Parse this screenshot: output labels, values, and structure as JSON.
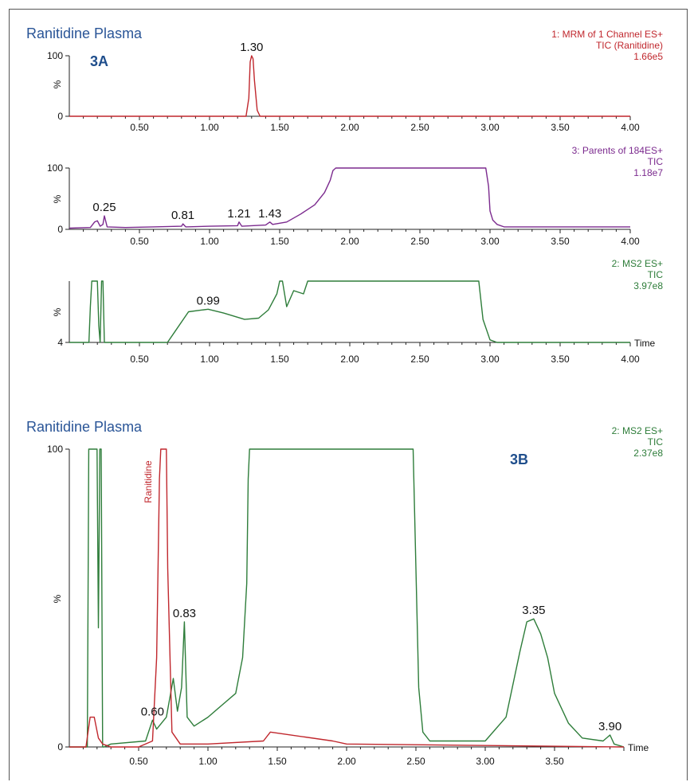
{
  "figure": {
    "colors": {
      "red": "#c0272d",
      "purple": "#7b2a8e",
      "green": "#2e7d3a",
      "title_blue": "#2a5597",
      "badge_blue": "#1f4e8c"
    }
  },
  "chart_data": [
    {
      "id": "p1",
      "type": "line",
      "title": "Ranitidine Plasma",
      "badge": "3A",
      "info": [
        "1: MRM of 1 Channel ES+",
        "TIC (Ranitidine)",
        "1.66e5"
      ],
      "color": "#c0272d",
      "ylabel": "%",
      "y_ticks": [
        "100",
        "0"
      ],
      "ylim": [
        0,
        100
      ],
      "xlim": [
        0.0,
        4.0
      ],
      "x_ticks": [
        "0.50",
        "1.00",
        "1.50",
        "2.00",
        "2.50",
        "3.00",
        "3.50",
        "4.00"
      ],
      "xlabel": "",
      "peaks": [
        {
          "x": 1.3,
          "label": "1.30"
        }
      ],
      "x": [
        0.0,
        1.26,
        1.28,
        1.29,
        1.3,
        1.31,
        1.32,
        1.34,
        1.36,
        4.0
      ],
      "y": [
        0,
        0,
        30,
        90,
        100,
        95,
        60,
        10,
        0,
        0
      ]
    },
    {
      "id": "p2",
      "type": "line",
      "title": "",
      "badge": "",
      "info": [
        "3: Parents of 184ES+",
        "TIC",
        "1.18e7"
      ],
      "color": "#7b2a8e",
      "ylabel": "%",
      "y_ticks": [
        "100",
        "0"
      ],
      "ylim": [
        0,
        100
      ],
      "xlim": [
        0.0,
        4.0
      ],
      "x_ticks": [
        "0.50",
        "1.00",
        "1.50",
        "2.00",
        "2.50",
        "3.00",
        "3.50",
        "4.00"
      ],
      "xlabel": "",
      "peaks": [
        {
          "x": 0.25,
          "label": "0.25"
        },
        {
          "x": 0.81,
          "label": "0.81"
        },
        {
          "x": 1.21,
          "label": "1.21"
        },
        {
          "x": 1.43,
          "label": "1.43"
        }
      ],
      "x": [
        0.0,
        0.15,
        0.18,
        0.2,
        0.22,
        0.24,
        0.25,
        0.27,
        0.4,
        0.6,
        0.8,
        0.81,
        0.83,
        1.0,
        1.2,
        1.21,
        1.23,
        1.4,
        1.43,
        1.45,
        1.55,
        1.65,
        1.75,
        1.82,
        1.86,
        1.88,
        1.9,
        2.5,
        2.97,
        2.99,
        3.0,
        3.02,
        3.05,
        3.1,
        4.0
      ],
      "y": [
        2,
        3,
        12,
        14,
        5,
        8,
        22,
        4,
        3,
        4,
        5,
        9,
        4,
        5,
        6,
        12,
        5,
        7,
        12,
        8,
        12,
        25,
        40,
        60,
        80,
        96,
        100,
        100,
        100,
        70,
        30,
        15,
        8,
        4,
        4
      ]
    },
    {
      "id": "p3",
      "type": "line",
      "title": "",
      "badge": "",
      "info": [
        "2: MS2 ES+",
        "TIC",
        "3.97e8"
      ],
      "color": "#2e7d3a",
      "ylabel": "%",
      "y_ticks": [
        "4"
      ],
      "ylim": [
        4,
        100
      ],
      "xlim": [
        0.0,
        4.0
      ],
      "x_ticks": [
        "0.50",
        "1.00",
        "1.50",
        "2.00",
        "2.50",
        "3.00",
        "3.50",
        "4.00"
      ],
      "xlabel": "Time",
      "peaks": [
        {
          "x": 0.99,
          "label": "0.99"
        }
      ],
      "x": [
        0.0,
        0.14,
        0.15,
        0.16,
        0.2,
        0.21,
        0.22,
        0.23,
        0.24,
        0.25,
        0.26,
        0.27,
        0.7,
        0.75,
        0.85,
        0.99,
        1.1,
        1.25,
        1.35,
        1.42,
        1.48,
        1.5,
        1.52,
        1.55,
        1.6,
        1.67,
        1.7,
        1.75,
        2.0,
        2.92,
        2.95,
        3.0,
        3.05,
        4.0
      ],
      "y": [
        4,
        4,
        60,
        100,
        100,
        30,
        4,
        100,
        100,
        4,
        4,
        4,
        4,
        20,
        52,
        56,
        50,
        40,
        42,
        55,
        80,
        100,
        100,
        60,
        85,
        80,
        100,
        100,
        100,
        100,
        40,
        8,
        4,
        4
      ]
    },
    {
      "id": "p4",
      "type": "line",
      "title": "Ranitidine Plasma",
      "badge": "3B",
      "info": [
        "2: MS2 ES+",
        "TIC",
        "2.37e8"
      ],
      "ylabel": "%",
      "y_ticks": [
        "100",
        "0"
      ],
      "ylim": [
        0,
        100
      ],
      "xlim": [
        0.0,
        4.0
      ],
      "x_ticks": [
        "0.50",
        "1.00",
        "1.50",
        "2.00",
        "2.50",
        "3.00",
        "3.50"
      ],
      "xlabel": "Time",
      "annotation": "Ranitidine",
      "peaks": [
        {
          "x": 0.6,
          "label": "0.60"
        },
        {
          "x": 0.83,
          "label": "0.83"
        },
        {
          "x": 3.35,
          "label": "3.35"
        },
        {
          "x": 3.9,
          "label": "3.90"
        }
      ],
      "series": [
        {
          "color": "#2e7d3a",
          "x": [
            0.0,
            0.13,
            0.14,
            0.15,
            0.2,
            0.21,
            0.22,
            0.23,
            0.24,
            0.25,
            0.3,
            0.55,
            0.6,
            0.63,
            0.7,
            0.75,
            0.78,
            0.81,
            0.83,
            0.85,
            0.9,
            1.0,
            1.1,
            1.2,
            1.25,
            1.28,
            1.29,
            1.3,
            2.48,
            2.5,
            2.52,
            2.55,
            2.6,
            3.0,
            3.15,
            3.25,
            3.3,
            3.35,
            3.4,
            3.45,
            3.5,
            3.6,
            3.7,
            3.85,
            3.9,
            3.93,
            4.0
          ],
          "y": [
            0,
            0,
            100,
            100,
            100,
            40,
            100,
            100,
            0,
            0,
            1,
            2,
            9,
            6,
            10,
            23,
            12,
            20,
            42,
            10,
            7,
            10,
            14,
            18,
            30,
            55,
            90,
            100,
            100,
            60,
            20,
            5,
            2,
            2,
            10,
            32,
            42,
            43,
            38,
            30,
            18,
            8,
            3,
            2,
            4,
            1,
            0
          ]
        },
        {
          "color": "#c0272d",
          "x": [
            0.0,
            0.12,
            0.15,
            0.18,
            0.21,
            0.24,
            0.3,
            0.5,
            0.6,
            0.63,
            0.65,
            0.66,
            0.7,
            0.71,
            0.74,
            0.8,
            1.0,
            1.4,
            1.45,
            1.9,
            2.0,
            4.0
          ],
          "y": [
            0,
            0,
            10,
            10,
            3,
            1,
            0,
            0,
            2,
            30,
            90,
            100,
            100,
            60,
            5,
            1,
            1,
            2,
            5,
            2,
            1,
            0
          ]
        }
      ]
    }
  ]
}
